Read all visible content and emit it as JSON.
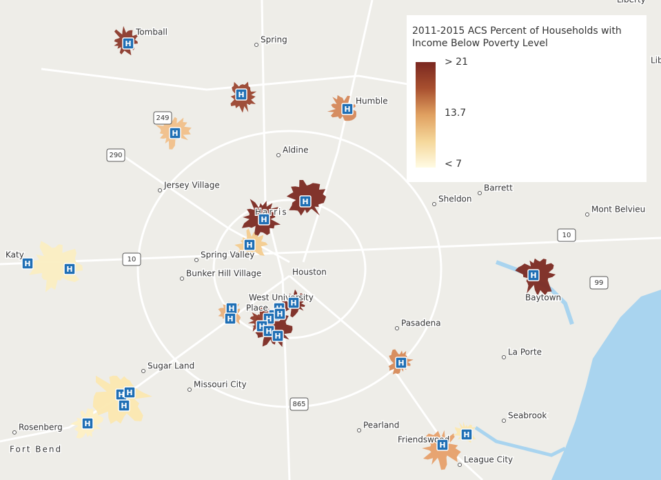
{
  "legend": {
    "title": "2011-2015 ACS Percent of Households with Income Below Poverty Level",
    "labels": [
      "> 21",
      "13.7",
      "< 7"
    ]
  },
  "hospital_icon_label": "H",
  "places": [
    "Tomball",
    "Spring",
    "Humble",
    "Aldine",
    "Jersey Village",
    "Barrett",
    "Sheldon",
    "Mont Belvieu",
    "Harris",
    "Spring Valley",
    "Bunker Hill Village",
    "Houston",
    "Katy",
    "West University",
    "Place",
    "Baytown",
    "Pasadena",
    "La Porte",
    "Sugar Land",
    "Missouri City",
    "Seabrook",
    "Pearland",
    "Friendswood",
    "League City",
    "Rosenberg",
    "Fort Bend",
    "Liberty",
    "Lib"
  ],
  "road_shields": [
    "249",
    "290",
    "10",
    "10",
    "865",
    "99"
  ]
}
